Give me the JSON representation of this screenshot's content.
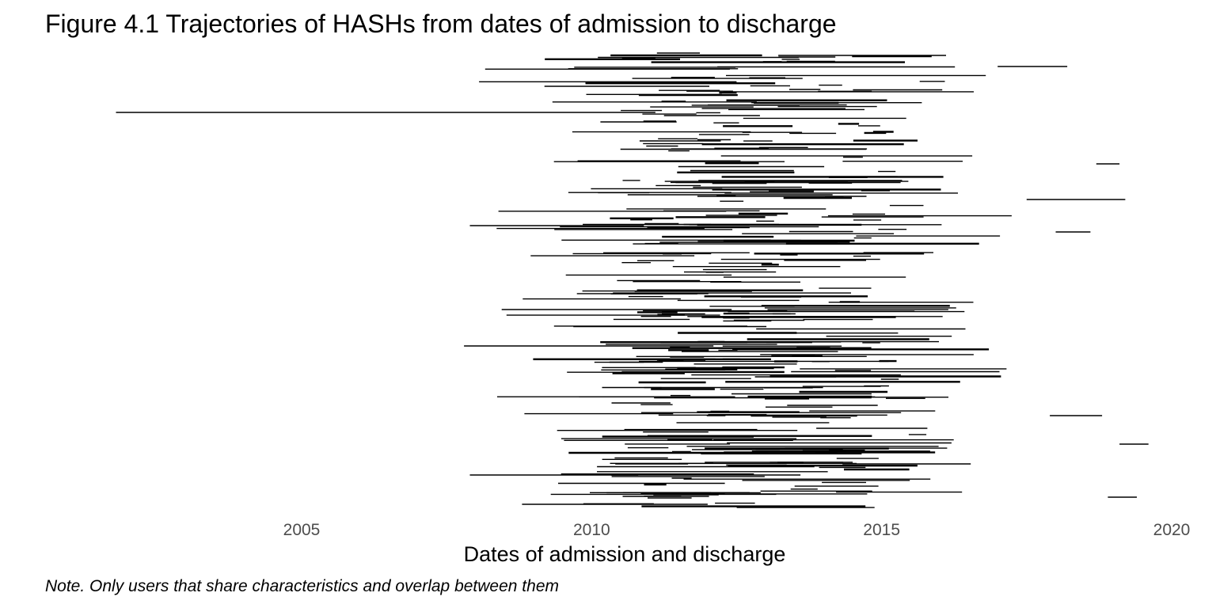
{
  "chart_data": {
    "type": "line",
    "title": "Figure 4.1 Trajectories of HASHs from dates of admission to discharge",
    "xlabel": "Dates of admission and discharge",
    "ylabel": "",
    "note": "Note. Only users that share characteristics and overlap between them",
    "x_ticks": [
      2005,
      2010,
      2015,
      2020
    ],
    "xlim": [
      2000.9,
      2020.4
    ],
    "grid": false,
    "legend": "none",
    "line_color": "#000000",
    "n_segments": 380,
    "segments_sample": [
      {
        "start": 2001.8,
        "end": 2011.1
      },
      {
        "start": 2007.8,
        "end": 2012.1
      },
      {
        "start": 2007.9,
        "end": 2013.6
      },
      {
        "start": 2007.9,
        "end": 2010.9
      },
      {
        "start": 2017.0,
        "end": 2018.2
      },
      {
        "start": 2018.7,
        "end": 2019.1
      },
      {
        "start": 2017.5,
        "end": 2019.2
      },
      {
        "start": 2018.0,
        "end": 2018.6
      },
      {
        "start": 2019.1,
        "end": 2019.6
      },
      {
        "start": 2018.9,
        "end": 2019.4
      },
      {
        "start": 2017.9,
        "end": 2018.8
      },
      {
        "start": 2008.8,
        "end": 2012.0
      }
    ]
  }
}
